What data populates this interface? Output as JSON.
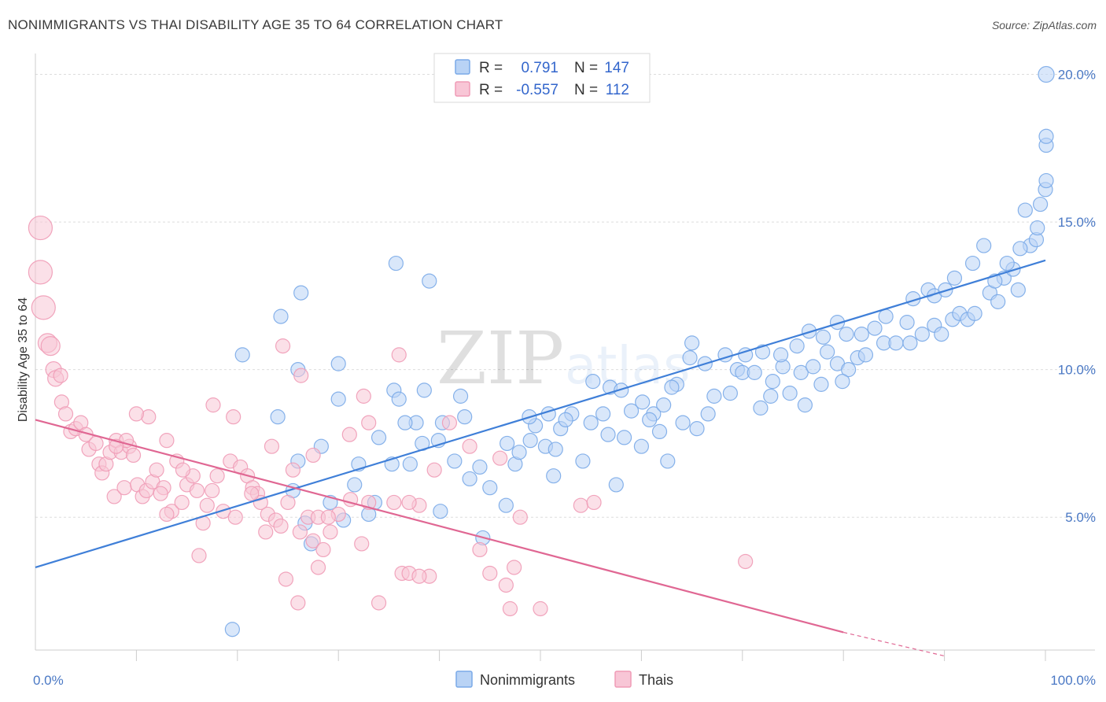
{
  "title": "NONIMMIGRANTS VS THAI DISABILITY AGE 35 TO 64 CORRELATION CHART",
  "source": "Source: ZipAtlas.com",
  "watermark": {
    "zip": "ZIP",
    "atlas": "atlas"
  },
  "legend": {
    "rows": [
      {
        "r_label": "R =",
        "r_value": "0.791",
        "n_label": "N =",
        "n_value": "147",
        "color": "#7aaae8",
        "fill": "#b9d3f5"
      },
      {
        "r_label": "R =",
        "r_value": "-0.557",
        "n_label": "N =",
        "n_value": "112",
        "color": "#ef9bb6",
        "fill": "#f8c6d6"
      }
    ]
  },
  "bottom_legend": [
    {
      "label": "Nonimmigrants",
      "color": "#7aaae8",
      "fill": "#b9d3f5"
    },
    {
      "label": "Thais",
      "color": "#ef9bb6",
      "fill": "#f8c6d6"
    }
  ],
  "chart_data": {
    "type": "scatter",
    "title": "NONIMMIGRANTS VS THAI DISABILITY AGE 35 TO 64 CORRELATION CHART",
    "xlabel": "",
    "ylabel": "Disability Age 35 to 64",
    "xlim": [
      0,
      100
    ],
    "ylim": [
      0.5,
      20.6
    ],
    "x_tick_labels": [
      {
        "value": 0,
        "label": "0.0%"
      },
      {
        "value": 100,
        "label": "100.0%"
      }
    ],
    "y_tick_labels": [
      {
        "value": 5,
        "label": "5.0%"
      },
      {
        "value": 10,
        "label": "10.0%"
      },
      {
        "value": 15,
        "label": "15.0%"
      },
      {
        "value": 20,
        "label": "20.0%"
      }
    ],
    "x_minor_ticks": [
      10,
      20,
      30,
      40,
      50,
      60,
      70,
      80,
      90,
      100
    ],
    "grid": true,
    "series": [
      {
        "name": "Nonimmigrants",
        "color": "#7aaae8",
        "fill": "#b9d3f5",
        "trend": {
          "x": [
            0,
            100
          ],
          "y": [
            3.3,
            13.7
          ],
          "color": "#3f7fd8"
        },
        "points": [
          [
            19.5,
            1.2
          ],
          [
            26.7,
            4.8
          ],
          [
            27.3,
            4.1
          ],
          [
            29.2,
            5.5
          ],
          [
            30.5,
            4.9
          ],
          [
            33.0,
            5.1
          ],
          [
            33.6,
            5.5
          ],
          [
            40.1,
            5.2
          ],
          [
            44.3,
            4.3
          ],
          [
            46.6,
            5.4
          ],
          [
            25.5,
            5.9
          ],
          [
            26.0,
            6.9
          ],
          [
            32.0,
            6.8
          ],
          [
            35.3,
            6.8
          ],
          [
            38.3,
            7.5
          ],
          [
            39.9,
            7.6
          ],
          [
            41.5,
            6.9
          ],
          [
            44.0,
            6.7
          ],
          [
            45.0,
            6.0
          ],
          [
            47.5,
            6.8
          ],
          [
            28.3,
            7.4
          ],
          [
            37.7,
            8.2
          ],
          [
            40.3,
            8.2
          ],
          [
            42.5,
            8.4
          ],
          [
            46.7,
            7.5
          ],
          [
            47.9,
            7.2
          ],
          [
            49.0,
            7.6
          ],
          [
            50.5,
            7.4
          ],
          [
            51.5,
            7.3
          ],
          [
            52.0,
            8.0
          ],
          [
            36.6,
            8.2
          ],
          [
            35.5,
            9.3
          ],
          [
            38.5,
            9.3
          ],
          [
            42.1,
            9.1
          ],
          [
            49.5,
            8.1
          ],
          [
            50.8,
            8.5
          ],
          [
            53.1,
            8.5
          ],
          [
            55.0,
            8.2
          ],
          [
            56.2,
            8.5
          ],
          [
            56.9,
            9.4
          ],
          [
            55.2,
            9.6
          ],
          [
            58.0,
            9.3
          ],
          [
            60.1,
            8.9
          ],
          [
            61.2,
            8.5
          ],
          [
            59.0,
            8.6
          ],
          [
            63.5,
            9.5
          ],
          [
            64.1,
            8.2
          ],
          [
            67.2,
            9.1
          ],
          [
            68.8,
            9.2
          ],
          [
            69.5,
            10.0
          ],
          [
            70.0,
            9.9
          ],
          [
            71.2,
            9.9
          ],
          [
            73.0,
            9.6
          ],
          [
            74.0,
            10.1
          ],
          [
            75.8,
            9.9
          ],
          [
            77.0,
            10.1
          ],
          [
            78.4,
            10.6
          ],
          [
            79.4,
            10.2
          ],
          [
            80.5,
            10.0
          ],
          [
            81.4,
            10.4
          ],
          [
            82.2,
            10.5
          ],
          [
            84.0,
            10.9
          ],
          [
            85.2,
            10.9
          ],
          [
            86.6,
            10.9
          ],
          [
            86.3,
            11.6
          ],
          [
            87.8,
            11.2
          ],
          [
            89.0,
            11.5
          ],
          [
            89.7,
            11.2
          ],
          [
            90.8,
            11.7
          ],
          [
            91.5,
            11.9
          ],
          [
            92.3,
            11.7
          ],
          [
            93.0,
            11.9
          ],
          [
            94.5,
            12.6
          ],
          [
            95.3,
            12.3
          ],
          [
            95.9,
            13.1
          ],
          [
            96.8,
            13.4
          ],
          [
            97.3,
            12.7
          ],
          [
            98.5,
            14.2
          ],
          [
            99.1,
            14.4
          ],
          [
            99.5,
            15.6
          ],
          [
            100.0,
            16.1
          ],
          [
            101.2,
            16.4
          ],
          [
            100.5,
            17.6
          ],
          [
            101.9,
            17.9
          ],
          [
            102.8,
            20.0
          ],
          [
            39.0,
            13.0
          ],
          [
            36.0,
            9.0
          ],
          [
            30.0,
            9.0
          ],
          [
            24.0,
            8.4
          ],
          [
            20.5,
            10.5
          ],
          [
            24.3,
            11.8
          ],
          [
            26.3,
            12.6
          ],
          [
            26.0,
            10.0
          ],
          [
            30.0,
            10.2
          ],
          [
            35.7,
            13.6
          ],
          [
            65.0,
            10.9
          ],
          [
            52.5,
            8.3
          ],
          [
            56.7,
            7.8
          ],
          [
            58.3,
            7.7
          ],
          [
            60.8,
            8.3
          ],
          [
            62.2,
            8.8
          ],
          [
            63.0,
            9.4
          ],
          [
            64.8,
            10.4
          ],
          [
            66.3,
            10.2
          ],
          [
            68.3,
            10.5
          ],
          [
            70.3,
            10.5
          ],
          [
            72.0,
            10.6
          ],
          [
            73.8,
            10.5
          ],
          [
            75.4,
            10.8
          ],
          [
            76.6,
            11.3
          ],
          [
            78.0,
            11.1
          ],
          [
            79.4,
            11.6
          ],
          [
            80.3,
            11.2
          ],
          [
            81.8,
            11.2
          ],
          [
            83.1,
            11.4
          ],
          [
            84.2,
            11.8
          ],
          [
            86.9,
            12.4
          ],
          [
            88.4,
            12.7
          ],
          [
            89.0,
            12.5
          ],
          [
            90.1,
            12.7
          ],
          [
            91.0,
            13.1
          ],
          [
            92.8,
            13.6
          ],
          [
            93.9,
            14.2
          ],
          [
            95.0,
            13.0
          ],
          [
            96.2,
            13.6
          ],
          [
            97.5,
            14.1
          ],
          [
            98.0,
            15.4
          ],
          [
            99.2,
            14.8
          ],
          [
            31.6,
            6.1
          ],
          [
            34.0,
            7.7
          ],
          [
            37.1,
            6.8
          ],
          [
            43.0,
            6.3
          ],
          [
            48.9,
            8.4
          ],
          [
            51.3,
            6.4
          ],
          [
            54.2,
            6.9
          ],
          [
            57.5,
            6.1
          ],
          [
            60.0,
            7.4
          ],
          [
            61.8,
            7.9
          ],
          [
            62.6,
            6.9
          ],
          [
            65.5,
            8.0
          ],
          [
            66.6,
            8.5
          ],
          [
            71.8,
            8.7
          ],
          [
            72.8,
            9.1
          ],
          [
            74.7,
            9.2
          ],
          [
            76.2,
            8.8
          ],
          [
            77.8,
            9.5
          ],
          [
            79.9,
            9.6
          ]
        ]
      },
      {
        "name": "Thais",
        "color": "#ef9bb6",
        "fill": "#f8c6d6",
        "trend": {
          "x": [
            0,
            80
          ],
          "y": [
            8.3,
            1.1
          ],
          "color": "#e06793",
          "dashed_to": [
            90,
            0.3
          ]
        },
        "points": [
          [
            0.5,
            14.8
          ],
          [
            0.5,
            13.3
          ],
          [
            0.8,
            12.1
          ],
          [
            1.2,
            10.9
          ],
          [
            1.5,
            10.8
          ],
          [
            1.8,
            10.0
          ],
          [
            2.0,
            9.7
          ],
          [
            2.5,
            9.8
          ],
          [
            2.6,
            8.9
          ],
          [
            3.0,
            8.5
          ],
          [
            3.5,
            7.9
          ],
          [
            4.0,
            8.0
          ],
          [
            4.5,
            8.2
          ],
          [
            5.0,
            7.8
          ],
          [
            5.3,
            7.3
          ],
          [
            6.0,
            7.5
          ],
          [
            6.3,
            6.8
          ],
          [
            6.6,
            6.5
          ],
          [
            7.0,
            6.8
          ],
          [
            7.4,
            7.2
          ],
          [
            7.8,
            5.7
          ],
          [
            8.0,
            7.6
          ],
          [
            8.5,
            7.2
          ],
          [
            8.8,
            6.0
          ],
          [
            9.3,
            7.4
          ],
          [
            9.7,
            7.1
          ],
          [
            10.1,
            6.1
          ],
          [
            10.6,
            5.7
          ],
          [
            11.0,
            5.9
          ],
          [
            11.6,
            6.2
          ],
          [
            12.0,
            6.6
          ],
          [
            12.7,
            6.0
          ],
          [
            13.0,
            7.6
          ],
          [
            13.5,
            5.2
          ],
          [
            14.0,
            6.9
          ],
          [
            14.5,
            5.5
          ],
          [
            15.0,
            6.1
          ],
          [
            15.6,
            6.4
          ],
          [
            16.0,
            5.9
          ],
          [
            16.6,
            4.8
          ],
          [
            17.0,
            5.4
          ],
          [
            17.5,
            5.9
          ],
          [
            18.0,
            6.4
          ],
          [
            18.6,
            5.2
          ],
          [
            19.3,
            6.9
          ],
          [
            19.8,
            5.0
          ],
          [
            20.3,
            6.7
          ],
          [
            21.0,
            6.4
          ],
          [
            21.5,
            6.0
          ],
          [
            22.0,
            5.8
          ],
          [
            22.3,
            5.5
          ],
          [
            22.8,
            4.5
          ],
          [
            23.0,
            5.1
          ],
          [
            23.8,
            4.9
          ],
          [
            24.3,
            4.7
          ],
          [
            25.0,
            5.5
          ],
          [
            25.5,
            6.6
          ],
          [
            26.2,
            4.5
          ],
          [
            27.0,
            5.0
          ],
          [
            27.5,
            4.2
          ],
          [
            28.0,
            5.0
          ],
          [
            28.5,
            3.9
          ],
          [
            29.2,
            4.5
          ],
          [
            30.0,
            5.1
          ],
          [
            31.2,
            5.6
          ],
          [
            32.3,
            4.1
          ],
          [
            33.0,
            5.5
          ],
          [
            35.5,
            5.5
          ],
          [
            36.3,
            3.1
          ],
          [
            37.0,
            3.1
          ],
          [
            38.0,
            5.4
          ],
          [
            39.5,
            6.6
          ],
          [
            41.0,
            8.2
          ],
          [
            43.0,
            7.4
          ],
          [
            44.0,
            3.9
          ],
          [
            45.0,
            3.1
          ],
          [
            47.4,
            3.3
          ],
          [
            47.0,
            1.9
          ],
          [
            48.0,
            5.0
          ],
          [
            50.0,
            1.9
          ],
          [
            54.0,
            5.4
          ],
          [
            55.3,
            5.5
          ],
          [
            70.3,
            3.5
          ],
          [
            46.6,
            2.7
          ],
          [
            46.0,
            7.0
          ],
          [
            37.0,
            5.5
          ],
          [
            36.0,
            10.5
          ],
          [
            33.0,
            8.2
          ],
          [
            32.5,
            9.1
          ],
          [
            31.1,
            7.8
          ],
          [
            29.0,
            5.0
          ],
          [
            27.5,
            7.1
          ],
          [
            26.3,
            9.8
          ],
          [
            24.5,
            10.8
          ],
          [
            23.4,
            7.4
          ],
          [
            21.4,
            5.8
          ],
          [
            19.6,
            8.4
          ],
          [
            17.6,
            8.8
          ],
          [
            16.2,
            3.7
          ],
          [
            14.6,
            6.6
          ],
          [
            13.0,
            5.1
          ],
          [
            12.4,
            5.8
          ],
          [
            11.2,
            8.4
          ],
          [
            10.0,
            8.5
          ],
          [
            9.0,
            7.6
          ],
          [
            8.0,
            7.4
          ],
          [
            24.8,
            2.9
          ],
          [
            26.0,
            2.1
          ],
          [
            28.0,
            3.3
          ],
          [
            34.0,
            2.1
          ],
          [
            39.0,
            3.0
          ],
          [
            38.0,
            3.0
          ]
        ]
      }
    ]
  }
}
